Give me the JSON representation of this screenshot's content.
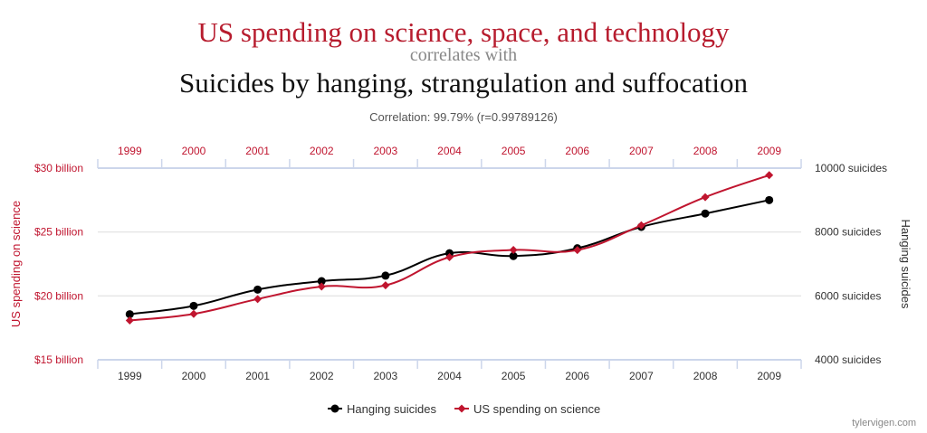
{
  "header": {
    "title_line1": "US spending on science, space, and technology",
    "title_line2": "correlates with",
    "title_line3": "Suicides by hanging, strangulation and suffocation",
    "correlation": "Correlation: 99.79% (r=0.99789126)"
  },
  "credit": "tylervigen.com",
  "chart_data": {
    "type": "line",
    "categories": [
      "1999",
      "2000",
      "2001",
      "2002",
      "2003",
      "2004",
      "2005",
      "2006",
      "2007",
      "2008",
      "2009"
    ],
    "y_left": {
      "label": "US spending on science",
      "range": [
        15,
        30
      ],
      "ticks": [
        "$15 billion",
        "$20 billion",
        "$25 billion",
        "$30 billion"
      ],
      "unit": "billion USD"
    },
    "y_right": {
      "label": "Hanging suicides",
      "range": [
        4000,
        10000
      ],
      "ticks": [
        "4000 suicides",
        "6000 suicides",
        "8000 suicides",
        "10000 suicides"
      ]
    },
    "grid": true,
    "legend_placement": "bottom",
    "series": [
      {
        "name": "Hanging suicides",
        "axis": "right",
        "color": "#000000",
        "marker": "circle",
        "values": [
          5427,
          5688,
          6198,
          6462,
          6635,
          7336,
          7248,
          7491,
          8161,
          8578,
          9000
        ]
      },
      {
        "name": "US spending on science",
        "axis": "left",
        "color": "#c0152f",
        "marker": "diamond",
        "values": [
          18.079,
          18.594,
          19.753,
          20.734,
          20.831,
          23.029,
          23.597,
          23.584,
          25.525,
          27.731,
          29.449
        ]
      }
    ],
    "colors": {
      "accent": "#c0152f",
      "axis": "#ccd6eb",
      "grid": "#e6e6e6",
      "right_axis_label": "#333333"
    }
  }
}
